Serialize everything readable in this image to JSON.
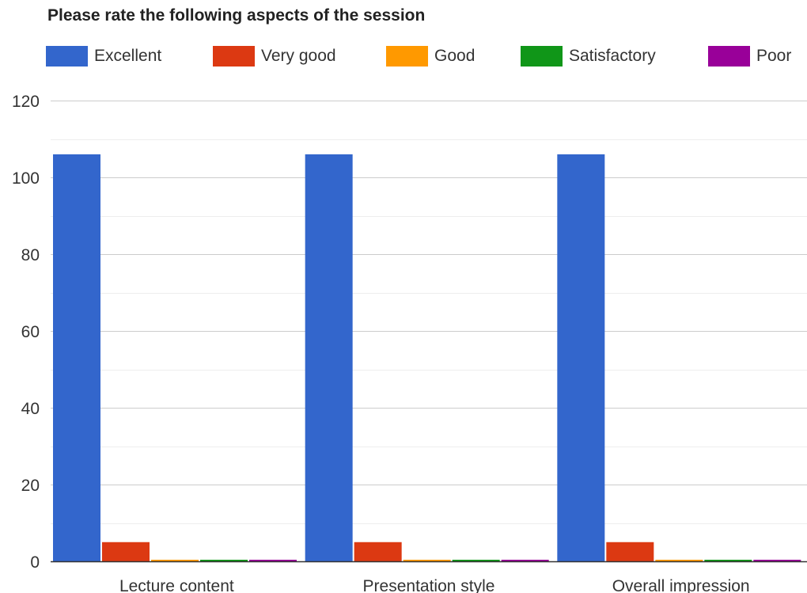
{
  "chart_data": {
    "type": "bar",
    "title": "Please rate the following aspects of the session",
    "categories": [
      "Lecture content",
      "Presentation style",
      "Overall impression"
    ],
    "series": [
      {
        "name": "Excellent",
        "color": "#3366cc",
        "values": [
          106,
          106,
          106
        ]
      },
      {
        "name": "Very good",
        "color": "#dc3912",
        "values": [
          5,
          5,
          5
        ]
      },
      {
        "name": "Good",
        "color": "#ff9900",
        "values": [
          0,
          0,
          0
        ]
      },
      {
        "name": "Satisfactory",
        "color": "#109618",
        "values": [
          0,
          0,
          0
        ]
      },
      {
        "name": "Poor",
        "color": "#990099",
        "values": [
          0,
          0,
          0
        ]
      }
    ],
    "yticks": [
      0,
      20,
      40,
      60,
      80,
      100,
      120
    ],
    "ylim": [
      0,
      120
    ],
    "grid": true,
    "legend_position": "top"
  }
}
